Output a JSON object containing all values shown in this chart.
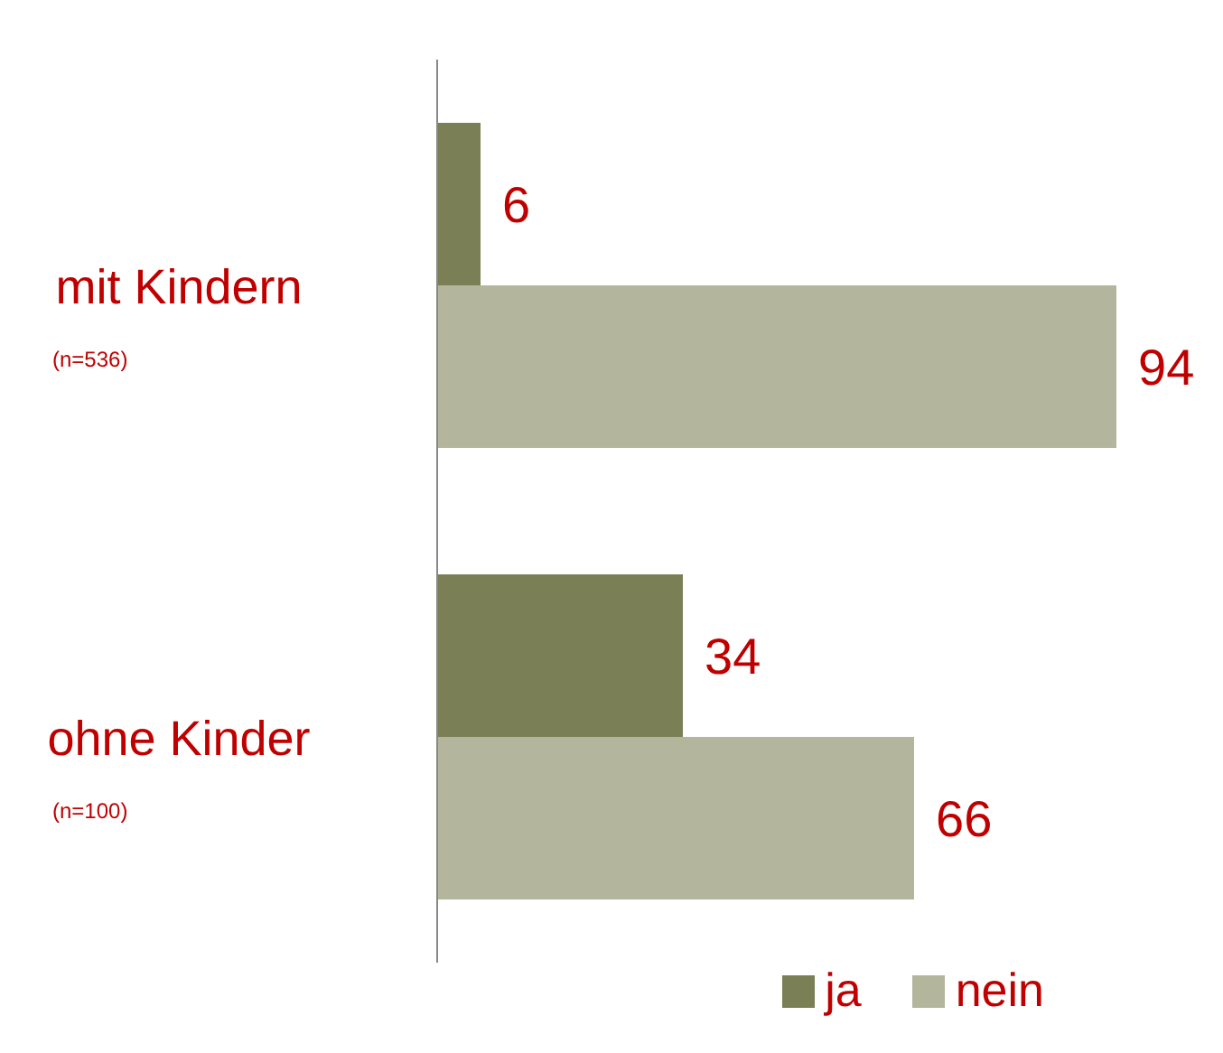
{
  "chart_data": {
    "type": "bar",
    "orientation": "horizontal",
    "categories": [
      "mit Kindern\n(n=536)",
      "ohne Kinder\n(n=100)"
    ],
    "series": [
      {
        "name": "ja",
        "color": "#7b7f55",
        "values": [
          6,
          34
        ]
      },
      {
        "name": "nein",
        "color": "#b3b59c",
        "values": [
          94,
          66
        ]
      }
    ],
    "data_labels": true,
    "legend": "bottom right",
    "grid": false
  }
}
